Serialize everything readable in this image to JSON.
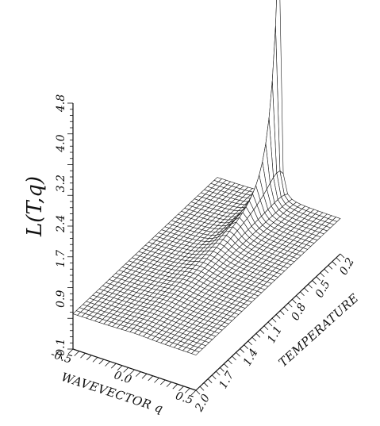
{
  "chart_data": {
    "type": "surface",
    "zlabel": "L(T,q)",
    "xlabel": "WAVEVECTOR  q",
    "ylabel": "TEMPERATURE",
    "q_ticks": [
      "-0.5",
      "0.0",
      "0.5"
    ],
    "t_ticks": [
      "2.0",
      "1.7",
      "1.4",
      "1.1",
      "0.8",
      "0.5",
      "0.2"
    ],
    "z_ticks": [
      "-0.1",
      "0.9",
      "1.7",
      "2.4",
      "3.2",
      "4.0",
      "4.8"
    ],
    "q_range": [
      -0.5,
      0.5
    ],
    "t_range": [
      2.0,
      0.2
    ],
    "z_range": [
      -0.1,
      4.8
    ],
    "surface": {
      "peak_q": 0.0,
      "peak_t": 0.2,
      "peak_value": 4.8,
      "background_value": 0.6,
      "grid_q_lines": 28,
      "grid_t_lines": 44
    },
    "colors": {
      "mesh": "#1a1a1a",
      "background": "#ffffff"
    }
  }
}
